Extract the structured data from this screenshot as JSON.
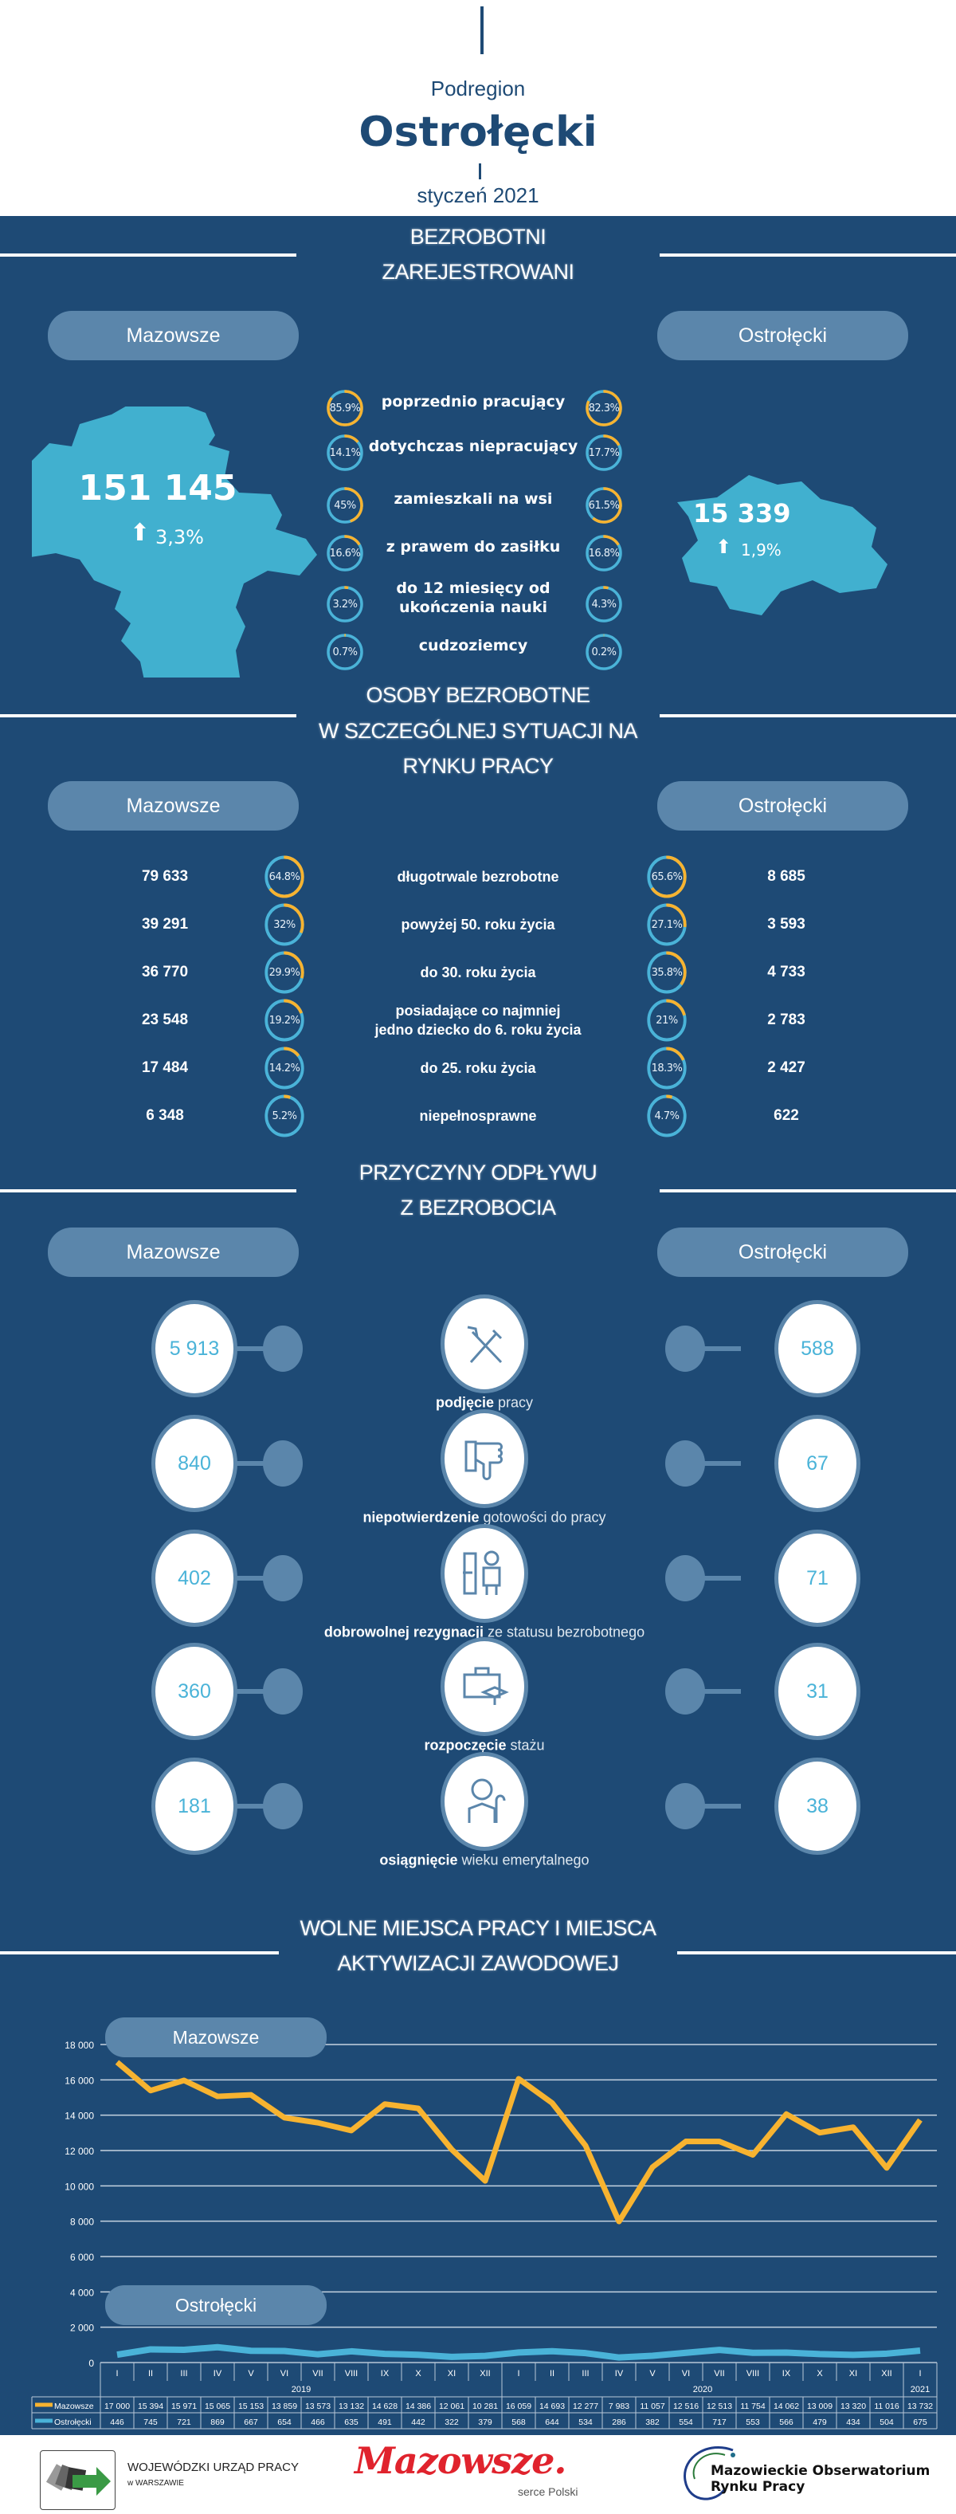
{
  "header": {
    "subtitle": "Podregion",
    "title": "Ostrołęcki",
    "date": "styczeń 2021"
  },
  "colors": {
    "background": "#1e4a75",
    "pill": "#5b86ab",
    "map": "#41b0cf",
    "ring": "#4ab3d8",
    "accent": "#f7b330",
    "value": "#4ab3d8"
  },
  "regions": {
    "left": "Mazowsze",
    "right": "Ostrołęcki"
  },
  "s1": {
    "title1": "BEZROBOTNI",
    "title2": "ZAREJESTROWANI",
    "left_total": "151 145",
    "left_change": "3,3%",
    "left_trend": "arrow-up-icon",
    "right_total": "15 339",
    "right_change": "1,9%",
    "right_trend": "arrow-up-icon",
    "rows": [
      {
        "label": "poprzednio pracujący",
        "left": "85.9%",
        "right": "82.3%"
      },
      {
        "label": "dotychczas niepracujący",
        "left": "14.1%",
        "right": "17.7%"
      },
      {
        "label": "zamieszkali na wsi",
        "left": "45%",
        "right": "61.5%"
      },
      {
        "label": "z prawem do zasiłku",
        "left": "16.6%",
        "right": "16.8%"
      },
      {
        "label": "do 12 miesięcy od\nukończenia nauki",
        "left": "3.2%",
        "right": "4.3%"
      },
      {
        "label": "cudzoziemcy",
        "left": "0.7%",
        "right": "0.2%"
      }
    ]
  },
  "s2": {
    "title1": "OSOBY BEZROBOTNE",
    "title2": "W SZCZEGÓLNEJ SYTUACJI NA",
    "title3": "RYNKU PRACY",
    "rows": [
      {
        "label": "długotrwale bezrobotne",
        "left_value": "79 633",
        "left_pct": "64.8%",
        "right_pct": "65.6%",
        "right_value": "8 685"
      },
      {
        "label": "powyżej 50. roku życia",
        "left_value": "39 291",
        "left_pct": "32%",
        "right_pct": "27.1%",
        "right_value": "3 593"
      },
      {
        "label": "do 30. roku życia",
        "left_value": "36 770",
        "left_pct": "29.9%",
        "right_pct": "35.8%",
        "right_value": "4 733"
      },
      {
        "label": "posiadające co najmniej\njedno dziecko do 6. roku życia",
        "left_value": "23 548",
        "left_pct": "19.2%",
        "right_pct": "21%",
        "right_value": "2 783"
      },
      {
        "label": "do 25. roku życia",
        "left_value": "17 484",
        "left_pct": "14.2%",
        "right_pct": "18.3%",
        "right_value": "2 427"
      },
      {
        "label": "niepełnosprawne",
        "left_value": "6 348",
        "left_pct": "5.2%",
        "right_pct": "4.7%",
        "right_value": "622"
      }
    ]
  },
  "s3": {
    "title1": "PRZYCZYNY ODPŁYWU",
    "title2": "Z BEZROBOCIA",
    "rows": [
      {
        "bold": "podjęcie",
        "rest": " pracy",
        "left": "5 913",
        "right": "588",
        "icon": "tools-icon"
      },
      {
        "bold": "niepotwierdzenie",
        "rest": " gotowości do pracy",
        "left": "840",
        "right": "67",
        "icon": "thumbs-down-icon"
      },
      {
        "bold": "dobrowolnej rezygnacji",
        "rest": " ze statusu bezrobotnego",
        "left": "402",
        "right": "71",
        "icon": "exit-door-person-icon"
      },
      {
        "bold": "rozpoczęcie",
        "rest": " stażu",
        "left": "360",
        "right": "31",
        "icon": "briefcase-graduation-icon"
      },
      {
        "bold": "osiągnięcie",
        "rest": " wieku emerytalnego",
        "left": "181",
        "right": "38",
        "icon": "elderly-person-icon"
      }
    ]
  },
  "s4": {
    "title1": "WOLNE MIEJSCA PRACY I MIEJSCA",
    "title2": "AKTYWIZACJI ZAWODOWEJ"
  },
  "chart_data": {
    "type": "line",
    "categories": [
      "I",
      "II",
      "III",
      "IV",
      "V",
      "VI",
      "VII",
      "VIII",
      "IX",
      "X",
      "XI",
      "XII",
      "I",
      "II",
      "III",
      "IV",
      "V",
      "VI",
      "VII",
      "VIII",
      "IX",
      "X",
      "XI",
      "XII",
      "I"
    ],
    "years": [
      {
        "label": "2019",
        "span": 12
      },
      {
        "label": "2020",
        "span": 12
      },
      {
        "label": "2021",
        "span": 1
      }
    ],
    "series": [
      {
        "name": "Mazowsze",
        "color": "#f7b330",
        "values": [
          17000,
          15394,
          15971,
          15065,
          15153,
          13859,
          13573,
          13132,
          14628,
          14386,
          12061,
          10281,
          16059,
          14693,
          12277,
          7983,
          11057,
          12516,
          12513,
          11754,
          14062,
          13009,
          13320,
          11016,
          13732
        ]
      },
      {
        "name": "Ostrołęcki",
        "color": "#4ab3d8",
        "values": [
          446,
          745,
          721,
          869,
          667,
          654,
          466,
          635,
          491,
          442,
          322,
          379,
          568,
          644,
          534,
          286,
          382,
          554,
          717,
          553,
          566,
          479,
          434,
          504,
          675
        ]
      }
    ],
    "value_labels": [
      [
        "17 000",
        "15 394",
        "15 971",
        "15 065",
        "15 153",
        "13 859",
        "13 573",
        "13 132",
        "14 628",
        "14 386",
        "12 061",
        "10 281",
        "16 059",
        "14 693",
        "12 277",
        "7 983",
        "11 057",
        "12 516",
        "12 513",
        "11 754",
        "14 062",
        "13 009",
        "13 320",
        "11 016",
        "13 732"
      ],
      [
        "446",
        "745",
        "721",
        "869",
        "667",
        "654",
        "466",
        "635",
        "491",
        "442",
        "322",
        "379",
        "568",
        "644",
        "534",
        "286",
        "382",
        "554",
        "717",
        "553",
        "566",
        "479",
        "434",
        "504",
        "675"
      ]
    ],
    "yticks": [
      "0",
      "2 000",
      "4 000",
      "6 000",
      "8 000",
      "10 000",
      "12 000",
      "14 000",
      "16 000",
      "18 000"
    ],
    "ylim": [
      0,
      18000
    ],
    "grid": true,
    "panel_labels": [
      "Mazowsze",
      "Ostrołęcki"
    ],
    "legend": "data-table"
  },
  "footer": {
    "wup_line1": "WOJEWÓDZKI URZĄD PRACY",
    "wup_line2": "w WARSZAWIE",
    "mazowsze_logo": "Mazowsze.",
    "mazowsze_tagline": "serce Polski",
    "obs_line1": "Mazowieckie Obserwatorium",
    "obs_line2": "Rynku Pracy"
  }
}
